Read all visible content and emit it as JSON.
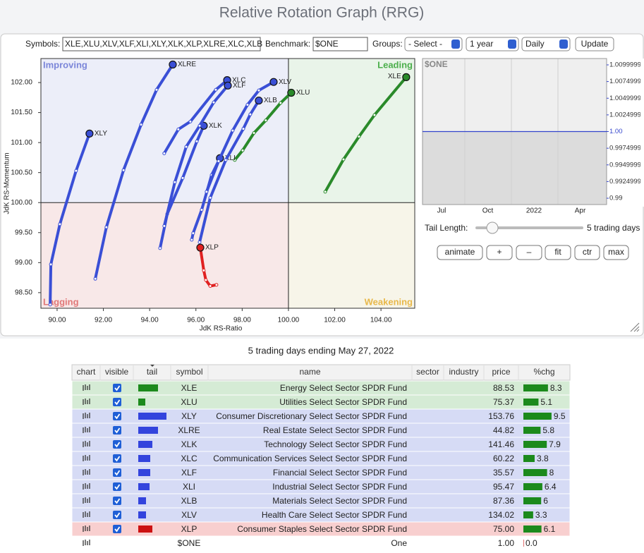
{
  "header": {
    "title": "Relative Rotation Graph (RRG)"
  },
  "controls": {
    "symbols_label": "Symbols:",
    "symbols_value": "XLE,XLU,XLV,XLF,XLI,XLY,XLK,XLP,XLRE,XLC,XLB",
    "benchmark_label": "Benchmark:",
    "benchmark_value": "$ONE",
    "groups_label": "Groups:",
    "groups_value": "- Select -",
    "period_value": "1 year",
    "interval_value": "Daily",
    "update_button": "Update",
    "tail_length_label": "Tail Length:",
    "tail_length_value": "5 trading days",
    "buttons": [
      "animate",
      "+",
      "–",
      "fit",
      "ctr",
      "max"
    ]
  },
  "chart_data": [
    {
      "type": "scatter",
      "xlabel": "JdK RS-Ratio",
      "ylabel": "JdK RS-Momentum",
      "xlim": [
        89.3,
        105.46
      ],
      "ylim": [
        98.24,
        102.4
      ],
      "xticks": [
        {
          "value": 90,
          "label": "90.00"
        },
        {
          "value": 92,
          "label": "92.00"
        },
        {
          "value": 94,
          "label": "94.00"
        },
        {
          "value": 96,
          "label": "96.00"
        },
        {
          "value": 98,
          "label": "98.00"
        },
        {
          "value": 100,
          "label": "100.00"
        },
        {
          "value": 102,
          "label": "102.00"
        },
        {
          "value": 104,
          "label": "104.00"
        }
      ],
      "yticks": [
        {
          "value": 98.5,
          "label": "98.50"
        },
        {
          "value": 99,
          "label": "99.00"
        },
        {
          "value": 99.5,
          "label": "99.50"
        },
        {
          "value": 100,
          "label": "100.00"
        },
        {
          "value": 100.5,
          "label": "100.50"
        },
        {
          "value": 101,
          "label": "101.00"
        },
        {
          "value": 101.5,
          "label": "101.50"
        },
        {
          "value": 102,
          "label": "102.00"
        }
      ],
      "reference": {
        "x": 100,
        "y": 100
      },
      "quadrants": [
        "Improving",
        "Leading",
        "Lagging",
        "Weakening"
      ],
      "series": [
        {
          "name": "XLE",
          "color": "#2a8a2a",
          "x": [
            101.59,
            102.38,
            103.05,
            103.72,
            105.09
          ],
          "y": [
            100.18,
            100.72,
            101.1,
            101.46,
            102.09
          ]
        },
        {
          "name": "XLU",
          "color": "#2a8a2a",
          "x": [
            97.68,
            98.02,
            98.51,
            99.02,
            99.66,
            100.12
          ],
          "y": [
            100.71,
            100.87,
            101.16,
            101.37,
            101.66,
            101.83
          ]
        },
        {
          "name": "XLY",
          "color": "#3a4fd6",
          "x": [
            89.7,
            89.73,
            90.12,
            90.82,
            91.4
          ],
          "y": [
            98.3,
            98.97,
            99.64,
            100.53,
            101.15
          ]
        },
        {
          "name": "XLRE",
          "color": "#3a4fd6",
          "x": [
            91.65,
            92.13,
            92.87,
            93.63,
            94.3,
            95.0
          ],
          "y": [
            98.73,
            99.59,
            100.54,
            101.3,
            101.88,
            102.3
          ]
        },
        {
          "name": "XLK",
          "color": "#3a4fd6",
          "x": [
            94.45,
            94.76,
            95.43,
            96.04,
            96.34
          ],
          "y": [
            99.24,
            99.81,
            100.41,
            101.02,
            101.28
          ]
        },
        {
          "name": "XLC",
          "color": "#3a4fd6",
          "x": [
            94.63,
            95.24,
            95.76,
            96.86,
            97.35
          ],
          "y": [
            100.82,
            101.22,
            101.35,
            101.88,
            102.04
          ]
        },
        {
          "name": "XLF",
          "color": "#3a4fd6",
          "x": [
            94.63,
            95.09,
            95.58,
            96.16,
            96.77,
            97.38
          ],
          "y": [
            99.61,
            100.34,
            100.93,
            101.28,
            101.67,
            101.95
          ]
        },
        {
          "name": "XLI",
          "color": "#3a4fd6",
          "x": [
            95.82,
            95.88,
            96.25,
            96.68,
            97.04
          ],
          "y": [
            99.38,
            99.49,
            99.88,
            100.46,
            100.74
          ]
        },
        {
          "name": "XLB",
          "color": "#3a4fd6",
          "x": [
            96.16,
            96.62,
            97.29,
            98.05,
            98.35,
            98.72
          ],
          "y": [
            99.34,
            100.08,
            100.71,
            101.23,
            101.47,
            101.7
          ]
        },
        {
          "name": "XLV",
          "color": "#3a4fd6",
          "x": [
            96.46,
            96.98,
            97.59,
            98.23,
            98.72,
            99.36
          ],
          "y": [
            100.18,
            100.69,
            101.2,
            101.63,
            101.87,
            102.01
          ]
        },
        {
          "name": "XLP",
          "color": "#e02020",
          "x": [
            96.89,
            96.62,
            96.43,
            96.34,
            96.19
          ],
          "y": [
            98.63,
            98.61,
            98.71,
            98.87,
            99.25
          ]
        }
      ]
    },
    {
      "type": "line",
      "title": "$ONE",
      "color": "#3344cc",
      "xtick_labels": [
        "Jul",
        "Oct",
        "2022",
        "Apr"
      ],
      "values": [
        1,
        1
      ],
      "ylim": [
        0.98905,
        1.01095
      ],
      "yticks": [
        1.0099999,
        1.0074999,
        1.0049999,
        1.0024999,
        {
          "value": 1,
          "label": "1.00"
        },
        0.9974999,
        0.9949999,
        0.9924999,
        0.99
      ]
    }
  ],
  "table": {
    "caption": "5 trading days ending May 27, 2022",
    "columns": [
      "chart",
      "visible",
      "tail",
      "symbol",
      "name",
      "sector",
      "industry",
      "price",
      "%chg"
    ],
    "rows": [
      {
        "symbol": "XLE",
        "name": "Energy Select Sector SPDR Fund",
        "price": "88.53",
        "chg": 8.3,
        "tail": 28,
        "visible": true,
        "color": "#d5ebd5",
        "tail_color": "#1d8a1d"
      },
      {
        "symbol": "XLU",
        "name": "Utilities Select Sector SPDR Fund",
        "price": "75.37",
        "chg": 5.1,
        "tail": 10,
        "visible": true,
        "color": "#d5ebd5",
        "tail_color": "#1d8a1d"
      },
      {
        "symbol": "XLY",
        "name": "Consumer Discretionary Select Sector SPDR Fund",
        "price": "153.76",
        "chg": 9.5,
        "tail": 40,
        "visible": true,
        "color": "#d6dbf5",
        "tail_color": "#3344dd"
      },
      {
        "symbol": "XLRE",
        "name": "Real Estate Select Sector SPDR Fund",
        "price": "44.82",
        "chg": 5.8,
        "tail": 28,
        "visible": true,
        "color": "#d6dbf5",
        "tail_color": "#3344dd"
      },
      {
        "symbol": "XLK",
        "name": "Technology Select Sector SPDR Fund",
        "price": "141.46",
        "chg": 7.9,
        "tail": 20,
        "visible": true,
        "color": "#d6dbf5",
        "tail_color": "#3344dd"
      },
      {
        "symbol": "XLC",
        "name": "Communication Services Select Sector SPDR Fund",
        "price": "60.22",
        "chg": 3.8,
        "tail": 17,
        "visible": true,
        "color": "#d6dbf5",
        "tail_color": "#3344dd"
      },
      {
        "symbol": "XLF",
        "name": "Financial Select Sector SPDR Fund",
        "price": "35.57",
        "chg": 8.0,
        "tail": 17,
        "visible": true,
        "color": "#d6dbf5",
        "tail_color": "#3344dd"
      },
      {
        "symbol": "XLI",
        "name": "Industrial Select Sector SPDR Fund",
        "price": "95.47",
        "chg": 6.4,
        "tail": 16,
        "visible": true,
        "color": "#d6dbf5",
        "tail_color": "#3344dd"
      },
      {
        "symbol": "XLB",
        "name": "Materials Select Sector SPDR Fund",
        "price": "87.36",
        "chg": 6.0,
        "tail": 11,
        "visible": true,
        "color": "#d6dbf5",
        "tail_color": "#3344dd"
      },
      {
        "symbol": "XLV",
        "name": "Health Care Select Sector SPDR Fund",
        "price": "134.02",
        "chg": 3.3,
        "tail": 11,
        "visible": true,
        "color": "#d6dbf5",
        "tail_color": "#3344dd"
      },
      {
        "symbol": "XLP",
        "name": "Consumer Staples Select Sector SPDR Fund",
        "price": "75.00",
        "chg": 6.1,
        "tail": 20,
        "visible": true,
        "color": "#f8cfcf",
        "tail_color": "#cc1111"
      },
      {
        "symbol": "$ONE",
        "name": "One",
        "price": "1.00",
        "chg": {
          "value": 0,
          "label": "0.0"
        },
        "visible": false,
        "color": "#ffffff"
      }
    ]
  }
}
